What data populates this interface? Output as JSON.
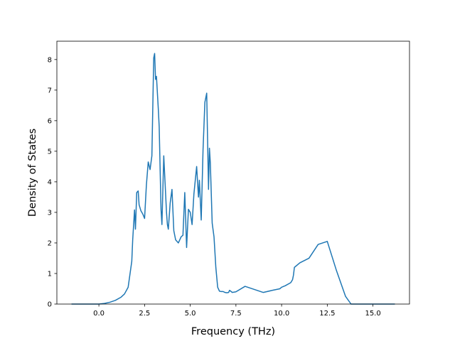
{
  "chart_data": {
    "type": "line",
    "title": "",
    "xlabel": "Frequency (THz)",
    "ylabel": "Density of States",
    "xlim": [
      -2.3,
      17.0
    ],
    "ylim": [
      0,
      8.6
    ],
    "grid": false,
    "legend": "none",
    "xticks": [
      0.0,
      2.5,
      5.0,
      7.5,
      10.0,
      12.5,
      15.0
    ],
    "xtick_labels": [
      "0.0",
      "2.5",
      "5.0",
      "7.5",
      "10.0",
      "12.5",
      "15.0"
    ],
    "yticks": [
      0,
      1,
      2,
      3,
      4,
      5,
      6,
      7,
      8
    ],
    "ytick_labels": [
      "0",
      "1",
      "2",
      "3",
      "4",
      "5",
      "6",
      "7",
      "8"
    ],
    "line_color": "#1f77b4",
    "series": [
      {
        "x": [
          -1.5,
          -0.5,
          0.0,
          0.3,
          0.6,
          0.9,
          1.2,
          1.4,
          1.6,
          1.8,
          1.85,
          1.95,
          2.0,
          2.07,
          2.15,
          2.2,
          2.3,
          2.4,
          2.5,
          2.6,
          2.7,
          2.8,
          2.9,
          3.0,
          3.05,
          3.1,
          3.15,
          3.25,
          3.3,
          3.4,
          3.45,
          3.55,
          3.7,
          3.75,
          3.8,
          3.9,
          4.0,
          4.1,
          4.2,
          4.35,
          4.5,
          4.6,
          4.7,
          4.8,
          4.9,
          5.0,
          5.1,
          5.2,
          5.35,
          5.45,
          5.5,
          5.6,
          5.7,
          5.8,
          5.9,
          6.0,
          6.05,
          6.1,
          6.2,
          6.3,
          6.4,
          6.5,
          6.6,
          6.7,
          6.8,
          6.9,
          7.0,
          7.1,
          7.15,
          7.3,
          7.5,
          8.0,
          9.0,
          9.5,
          9.9,
          10.0,
          10.2,
          10.5,
          10.6,
          10.65,
          10.7,
          11.0,
          11.5,
          12.0,
          12.5,
          13.0,
          13.5,
          13.8,
          14.0,
          14.2,
          14.3,
          14.5,
          14.6,
          14.7,
          14.8,
          15.2,
          16.2
        ],
        "y": [
          0.0,
          0.0,
          0.0,
          0.02,
          0.06,
          0.12,
          0.22,
          0.33,
          0.55,
          1.4,
          2.1,
          3.08,
          2.45,
          3.65,
          3.7,
          3.25,
          3.05,
          2.95,
          2.8,
          3.9,
          4.65,
          4.4,
          4.85,
          8.05,
          8.2,
          7.35,
          7.45,
          6.4,
          5.8,
          3.1,
          2.6,
          4.85,
          3.0,
          2.6,
          2.45,
          3.3,
          3.75,
          2.4,
          2.1,
          2.0,
          2.2,
          2.25,
          3.65,
          1.85,
          3.1,
          3.0,
          2.6,
          3.6,
          4.5,
          3.5,
          4.05,
          2.75,
          5.05,
          6.6,
          6.9,
          3.75,
          5.1,
          4.6,
          2.65,
          2.2,
          1.2,
          0.55,
          0.42,
          0.41,
          0.41,
          0.38,
          0.37,
          0.38,
          0.45,
          0.38,
          0.4,
          0.58,
          0.38,
          0.45,
          0.5,
          0.55,
          0.6,
          0.7,
          0.8,
          0.95,
          1.2,
          1.35,
          1.5,
          1.95,
          2.05,
          1.1,
          0.25,
          0.0,
          0.0,
          0.0,
          0.0,
          0.0,
          0.0,
          0.0,
          0.0,
          0.0,
          0.0
        ]
      }
    ]
  }
}
